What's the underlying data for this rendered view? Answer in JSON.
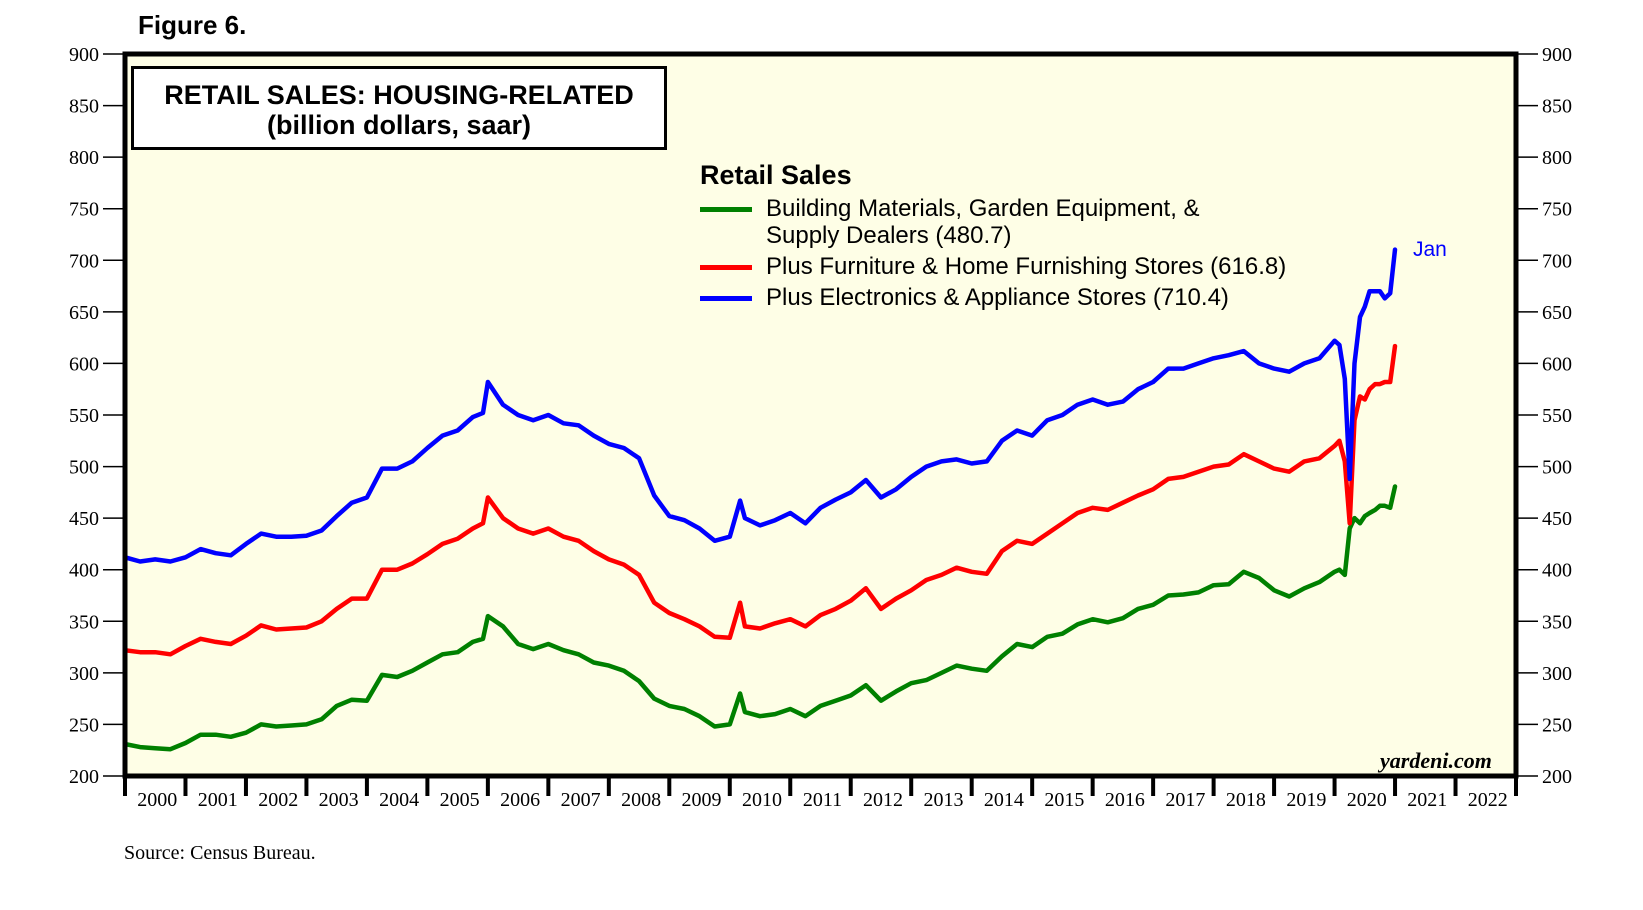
{
  "figure_label": "Figure 6.",
  "source": "Source: Census Bureau.",
  "watermark": "yardeni.com",
  "endpoint_label": "Jan",
  "colors": {
    "plot_bg": "#fefee6",
    "green": "#008000",
    "red": "#ff0000",
    "blue": "#0000ff",
    "axis": "#000000"
  },
  "chart_data": {
    "type": "line",
    "title": "RETAIL SALES: HOUSING-RELATED",
    "subtitle": "(billion dollars, saar)",
    "xlabel": "",
    "ylabel": "",
    "ylim": [
      200,
      900
    ],
    "xlim": [
      2000,
      2023
    ],
    "yticks": [
      200,
      250,
      300,
      350,
      400,
      450,
      500,
      550,
      600,
      650,
      700,
      750,
      800,
      850,
      900
    ],
    "xtick_labels": [
      "2000",
      "2001",
      "2002",
      "2003",
      "2004",
      "2005",
      "2006",
      "2007",
      "2008",
      "2009",
      "2010",
      "2011",
      "2012",
      "2013",
      "2014",
      "2015",
      "2016",
      "2017",
      "2018",
      "2019",
      "2020",
      "2021",
      "2022"
    ],
    "legend_title": "Retail Sales",
    "legend_position": "top-center",
    "grid": false,
    "x": [
      2000.0,
      2000.25,
      2000.5,
      2000.75,
      2001.0,
      2001.25,
      2001.5,
      2001.75,
      2002.0,
      2002.25,
      2002.5,
      2002.75,
      2003.0,
      2003.25,
      2003.5,
      2003.75,
      2004.0,
      2004.25,
      2004.5,
      2004.75,
      2005.0,
      2005.25,
      2005.5,
      2005.75,
      2005.92,
      2006.0,
      2006.25,
      2006.5,
      2006.75,
      2007.0,
      2007.25,
      2007.5,
      2007.75,
      2008.0,
      2008.25,
      2008.5,
      2008.75,
      2009.0,
      2009.25,
      2009.5,
      2009.75,
      2010.0,
      2010.17,
      2010.25,
      2010.5,
      2010.75,
      2011.0,
      2011.25,
      2011.5,
      2011.75,
      2012.0,
      2012.25,
      2012.5,
      2012.75,
      2013.0,
      2013.25,
      2013.5,
      2013.75,
      2014.0,
      2014.25,
      2014.5,
      2014.75,
      2015.0,
      2015.25,
      2015.5,
      2015.75,
      2016.0,
      2016.25,
      2016.5,
      2016.75,
      2017.0,
      2017.25,
      2017.5,
      2017.75,
      2018.0,
      2018.25,
      2018.5,
      2018.75,
      2019.0,
      2019.25,
      2019.5,
      2019.75,
      2020.0,
      2020.08,
      2020.17,
      2020.25,
      2020.33,
      2020.42,
      2020.5,
      2020.58,
      2020.67,
      2020.75,
      2020.83,
      2020.92,
      2021.0
    ],
    "series": [
      {
        "name": "Building Materials, Garden Equipment, & Supply Dealers (480.7)",
        "color": "#008000",
        "values": [
          231,
          228,
          227,
          226,
          232,
          240,
          240,
          238,
          242,
          250,
          248,
          249,
          250,
          255,
          268,
          274,
          273,
          298,
          296,
          302,
          310,
          318,
          320,
          330,
          333,
          355,
          345,
          328,
          323,
          328,
          322,
          318,
          310,
          307,
          302,
          292,
          275,
          268,
          265,
          258,
          248,
          250,
          280,
          262,
          258,
          260,
          265,
          258,
          268,
          273,
          278,
          288,
          273,
          282,
          290,
          293,
          300,
          307,
          304,
          302,
          316,
          328,
          325,
          335,
          338,
          347,
          352,
          349,
          353,
          362,
          366,
          375,
          376,
          378,
          385,
          386,
          398,
          392,
          380,
          374,
          382,
          388,
          398,
          400,
          395,
          440,
          450,
          445,
          452,
          455,
          458,
          462,
          462,
          460,
          480.7
        ]
      },
      {
        "name": "Plus Furniture & Home Furnishing Stores (616.8)",
        "color": "#ff0000",
        "values": [
          322,
          320,
          320,
          318,
          326,
          333,
          330,
          328,
          336,
          346,
          342,
          343,
          344,
          350,
          362,
          372,
          372,
          400,
          400,
          406,
          415,
          425,
          430,
          440,
          445,
          470,
          450,
          440,
          435,
          440,
          432,
          428,
          418,
          410,
          405,
          395,
          368,
          358,
          352,
          345,
          335,
          334,
          368,
          345,
          343,
          348,
          352,
          345,
          356,
          362,
          370,
          382,
          362,
          372,
          380,
          390,
          395,
          402,
          398,
          396,
          418,
          428,
          425,
          435,
          445,
          455,
          460,
          458,
          465,
          472,
          478,
          488,
          490,
          495,
          500,
          502,
          512,
          505,
          498,
          495,
          505,
          508,
          520,
          525,
          505,
          445,
          545,
          568,
          565,
          575,
          580,
          580,
          582,
          582,
          616.8
        ]
      },
      {
        "name": "Plus Electronics & Appliance Stores (710.4)",
        "color": "#0000ff",
        "values": [
          412,
          408,
          410,
          408,
          412,
          420,
          416,
          414,
          425,
          435,
          432,
          432,
          433,
          438,
          452,
          465,
          470,
          498,
          498,
          505,
          518,
          530,
          535,
          548,
          552,
          582,
          560,
          550,
          545,
          550,
          542,
          540,
          530,
          522,
          518,
          508,
          472,
          452,
          448,
          440,
          428,
          432,
          467,
          450,
          443,
          448,
          455,
          445,
          460,
          468,
          475,
          487,
          470,
          478,
          490,
          500,
          505,
          507,
          503,
          505,
          525,
          535,
          530,
          545,
          550,
          560,
          565,
          560,
          563,
          575,
          582,
          595,
          595,
          600,
          605,
          608,
          612,
          600,
          595,
          592,
          600,
          605,
          622,
          618,
          585,
          488,
          600,
          645,
          655,
          670,
          670,
          670,
          663,
          668,
          710.4
        ]
      }
    ]
  }
}
